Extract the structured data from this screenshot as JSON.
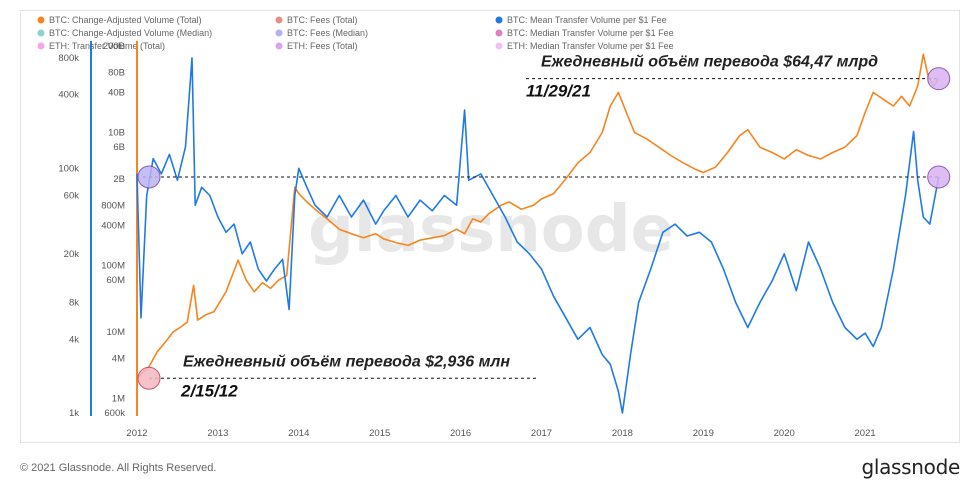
{
  "footer": {
    "copyright": "© 2021 Glassnode. All Rights Reserved.",
    "brand": "glassnode"
  },
  "watermark": "glassnode",
  "colors": {
    "orange": "#f7841e",
    "blue": "#1f7ae8",
    "red": "#d13232",
    "purple": "#7a6cf0",
    "teal": "#2bb3a2",
    "magenta": "#c2188f",
    "pink": "#f55ad6",
    "violet": "#b25ddc",
    "lilac": "#e88de6",
    "marker_fill": "#d9b3f0"
  },
  "chart_data": {
    "type": "line",
    "legend": [
      {
        "label": "BTC: Change-Adjusted Volume (Total)",
        "color": "#f7841e",
        "active": true
      },
      {
        "label": "BTC: Fees (Total)",
        "color": "#d13232",
        "active": false
      },
      {
        "label": "BTC: Mean Transfer Volume per $1 Fee",
        "color": "#1f7ae8",
        "active": true
      },
      {
        "label": "BTC: Change-Adjusted Volume (Median)",
        "color": "#2bb3a2",
        "active": false
      },
      {
        "label": "BTC: Fees (Median)",
        "color": "#7a6cf0",
        "active": false
      },
      {
        "label": "BTC: Median Transfer Volume per $1 Fee",
        "color": "#c2188f",
        "active": false
      },
      {
        "label": "ETH: Transfer Volume (Total)",
        "color": "#f55ad6",
        "active": false
      },
      {
        "label": "ETH: Fees (Total)",
        "color": "#b25ddc",
        "active": false
      },
      {
        "label": "ETH: Median Transfer Volume per $1 Fee",
        "color": "#e88de6",
        "active": false
      }
    ],
    "x_ticks": [
      "2012",
      "2013",
      "2014",
      "2015",
      "2016",
      "2017",
      "2018",
      "2019",
      "2020",
      "2021"
    ],
    "y_left_outer": {
      "scale": "log",
      "range": [
        1000,
        1000000
      ],
      "ticks": [
        "800k",
        "400k",
        "100k",
        "60k",
        "20k",
        "8k",
        "4k",
        "1k"
      ],
      "tick_values": [
        800000,
        400000,
        100000,
        60000,
        20000,
        8000,
        4000,
        1000
      ]
    },
    "y_left_inner": {
      "scale": "log",
      "range": [
        600000,
        200000000000
      ],
      "ticks": [
        "200B",
        "80B",
        "40B",
        "10B",
        "6B",
        "2B",
        "800M",
        "400M",
        "100M",
        "60M",
        "10M",
        "4M",
        "1M",
        "600k"
      ],
      "tick_values": [
        200000000000,
        80000000000,
        40000000000,
        10000000000,
        6000000000,
        2000000000,
        800000000,
        400000000,
        100000000,
        60000000,
        10000000,
        4000000,
        1000000,
        600000
      ]
    },
    "series": [
      {
        "name": "BTC: Change-Adjusted Volume (Total)",
        "axis": "inner",
        "color": "#f7841e",
        "points": [
          [
            2012.0,
            2000000
          ],
          [
            2012.08,
            2500000
          ],
          [
            2012.15,
            3000000
          ],
          [
            2012.25,
            5000000
          ],
          [
            2012.35,
            7000000
          ],
          [
            2012.45,
            10000000
          ],
          [
            2012.55,
            12000000
          ],
          [
            2012.62,
            14000000
          ],
          [
            2012.7,
            50000000
          ],
          [
            2012.75,
            15000000
          ],
          [
            2012.85,
            18000000
          ],
          [
            2012.95,
            20000000
          ],
          [
            2013.1,
            40000000
          ],
          [
            2013.25,
            120000000
          ],
          [
            2013.35,
            60000000
          ],
          [
            2013.45,
            40000000
          ],
          [
            2013.55,
            55000000
          ],
          [
            2013.65,
            45000000
          ],
          [
            2013.75,
            60000000
          ],
          [
            2013.85,
            70000000
          ],
          [
            2013.95,
            1500000000
          ],
          [
            2014.0,
            1200000000
          ],
          [
            2014.1,
            900000000
          ],
          [
            2014.2,
            700000000
          ],
          [
            2014.35,
            500000000
          ],
          [
            2014.5,
            350000000
          ],
          [
            2014.65,
            300000000
          ],
          [
            2014.8,
            260000000
          ],
          [
            2014.95,
            300000000
          ],
          [
            2015.05,
            250000000
          ],
          [
            2015.2,
            220000000
          ],
          [
            2015.35,
            200000000
          ],
          [
            2015.5,
            240000000
          ],
          [
            2015.65,
            260000000
          ],
          [
            2015.8,
            280000000
          ],
          [
            2015.95,
            350000000
          ],
          [
            2016.05,
            300000000
          ],
          [
            2016.15,
            500000000
          ],
          [
            2016.25,
            450000000
          ],
          [
            2016.35,
            600000000
          ],
          [
            2016.5,
            800000000
          ],
          [
            2016.6,
            900000000
          ],
          [
            2016.75,
            700000000
          ],
          [
            2016.9,
            800000000
          ],
          [
            2017.0,
            1000000000
          ],
          [
            2017.15,
            1200000000
          ],
          [
            2017.3,
            2000000000
          ],
          [
            2017.45,
            3500000000
          ],
          [
            2017.6,
            5000000000
          ],
          [
            2017.75,
            10000000000
          ],
          [
            2017.85,
            25000000000
          ],
          [
            2017.95,
            40000000000
          ],
          [
            2018.05,
            20000000000
          ],
          [
            2018.15,
            10000000000
          ],
          [
            2018.3,
            8000000000
          ],
          [
            2018.45,
            6000000000
          ],
          [
            2018.6,
            4500000000
          ],
          [
            2018.75,
            3500000000
          ],
          [
            2018.9,
            2800000000
          ],
          [
            2019.0,
            2500000000
          ],
          [
            2019.15,
            3000000000
          ],
          [
            2019.3,
            5000000000
          ],
          [
            2019.45,
            9000000000
          ],
          [
            2019.55,
            11000000000
          ],
          [
            2019.7,
            6000000000
          ],
          [
            2019.85,
            5000000000
          ],
          [
            2020.0,
            4000000000
          ],
          [
            2020.15,
            5500000000
          ],
          [
            2020.3,
            4500000000
          ],
          [
            2020.45,
            4000000000
          ],
          [
            2020.6,
            5000000000
          ],
          [
            2020.75,
            6000000000
          ],
          [
            2020.9,
            9000000000
          ],
          [
            2021.0,
            20000000000
          ],
          [
            2021.1,
            40000000000
          ],
          [
            2021.25,
            30000000000
          ],
          [
            2021.35,
            25000000000
          ],
          [
            2021.45,
            35000000000
          ],
          [
            2021.55,
            25000000000
          ],
          [
            2021.65,
            50000000000
          ],
          [
            2021.72,
            150000000000
          ],
          [
            2021.78,
            70000000000
          ],
          [
            2021.85,
            50000000000
          ],
          [
            2021.91,
            64470000000
          ]
        ]
      },
      {
        "name": "BTC: Mean Transfer Volume per $1 Fee",
        "axis": "outer",
        "color": "#1f7ae8",
        "points": [
          [
            2012.0,
            90000
          ],
          [
            2012.05,
            6000
          ],
          [
            2012.12,
            60000
          ],
          [
            2012.2,
            120000
          ],
          [
            2012.3,
            90000
          ],
          [
            2012.4,
            130000
          ],
          [
            2012.5,
            80000
          ],
          [
            2012.6,
            150000
          ],
          [
            2012.68,
            800000
          ],
          [
            2012.72,
            50000
          ],
          [
            2012.8,
            70000
          ],
          [
            2012.9,
            60000
          ],
          [
            2013.0,
            40000
          ],
          [
            2013.1,
            30000
          ],
          [
            2013.2,
            35000
          ],
          [
            2013.3,
            20000
          ],
          [
            2013.4,
            25000
          ],
          [
            2013.5,
            15000
          ],
          [
            2013.6,
            12000
          ],
          [
            2013.7,
            15000
          ],
          [
            2013.8,
            18000
          ],
          [
            2013.88,
            7000
          ],
          [
            2013.95,
            60000
          ],
          [
            2014.0,
            100000
          ],
          [
            2014.1,
            70000
          ],
          [
            2014.2,
            50000
          ],
          [
            2014.35,
            40000
          ],
          [
            2014.5,
            60000
          ],
          [
            2014.65,
            40000
          ],
          [
            2014.8,
            55000
          ],
          [
            2014.95,
            35000
          ],
          [
            2015.05,
            45000
          ],
          [
            2015.2,
            60000
          ],
          [
            2015.35,
            40000
          ],
          [
            2015.5,
            55000
          ],
          [
            2015.65,
            45000
          ],
          [
            2015.8,
            60000
          ],
          [
            2015.95,
            50000
          ],
          [
            2016.05,
            300000
          ],
          [
            2016.1,
            80000
          ],
          [
            2016.25,
            90000
          ],
          [
            2016.4,
            60000
          ],
          [
            2016.55,
            40000
          ],
          [
            2016.7,
            25000
          ],
          [
            2016.85,
            20000
          ],
          [
            2017.0,
            15000
          ],
          [
            2017.15,
            9000
          ],
          [
            2017.3,
            6000
          ],
          [
            2017.45,
            4000
          ],
          [
            2017.6,
            5000
          ],
          [
            2017.75,
            3000
          ],
          [
            2017.85,
            2500
          ],
          [
            2017.95,
            1500
          ],
          [
            2018.0,
            1000
          ],
          [
            2018.1,
            3000
          ],
          [
            2018.2,
            8000
          ],
          [
            2018.35,
            15000
          ],
          [
            2018.5,
            30000
          ],
          [
            2018.65,
            35000
          ],
          [
            2018.8,
            28000
          ],
          [
            2018.95,
            30000
          ],
          [
            2019.1,
            25000
          ],
          [
            2019.25,
            15000
          ],
          [
            2019.4,
            8000
          ],
          [
            2019.55,
            5000
          ],
          [
            2019.7,
            8000
          ],
          [
            2019.85,
            12000
          ],
          [
            2020.0,
            20000
          ],
          [
            2020.15,
            10000
          ],
          [
            2020.3,
            25000
          ],
          [
            2020.45,
            15000
          ],
          [
            2020.6,
            8000
          ],
          [
            2020.75,
            5000
          ],
          [
            2020.9,
            4000
          ],
          [
            2021.0,
            4500
          ],
          [
            2021.1,
            3500
          ],
          [
            2021.2,
            5000
          ],
          [
            2021.35,
            15000
          ],
          [
            2021.5,
            60000
          ],
          [
            2021.6,
            200000
          ],
          [
            2021.65,
            80000
          ],
          [
            2021.72,
            40000
          ],
          [
            2021.8,
            35000
          ],
          [
            2021.91,
            85000
          ]
        ]
      }
    ],
    "annotations": [
      {
        "text": "Ежедневный объём перевода $64,47 млрд",
        "date": "11/29/21"
      },
      {
        "text": "Ежедневный объём перевода $2,936 млн",
        "date": "2/15/12"
      }
    ],
    "grid": false,
    "legend_position": "top-left"
  }
}
